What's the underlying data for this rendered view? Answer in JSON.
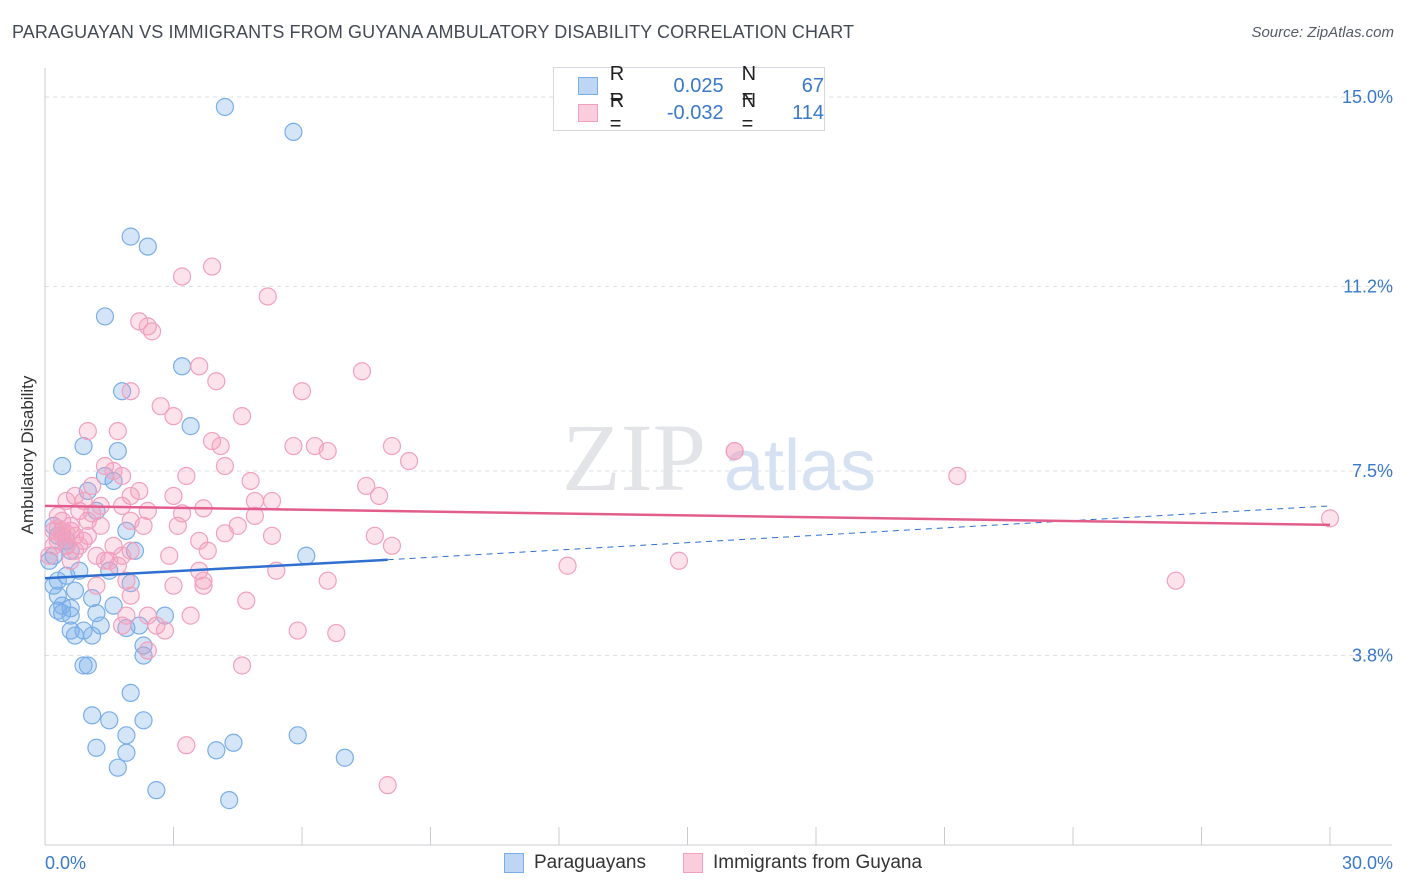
{
  "title": "PARAGUAYAN VS IMMIGRANTS FROM GUYANA AMBULATORY DISABILITY CORRELATION CHART",
  "source": "Source: ZipAtlas.com",
  "watermark": {
    "zip": "ZIP",
    "atlas": "atlas"
  },
  "legend": {
    "r_label": "R =",
    "n_label": "N =",
    "series": [
      {
        "r": "0.025",
        "n": "67"
      },
      {
        "r": "-0.032",
        "n": "114"
      }
    ]
  },
  "chart_data": {
    "type": "scatter",
    "title": "PARAGUAYAN VS IMMIGRANTS FROM GUYANA AMBULATORY DISABILITY CORRELATION CHART",
    "xlabel": "",
    "ylabel": "Ambulatory Disability",
    "xlim": [
      0,
      30
    ],
    "ylim": [
      0,
      15.5
    ],
    "x_tick_labels": [
      "0.0%",
      "30.0%"
    ],
    "y_ticks": [
      {
        "value": 3.8,
        "label": "3.8%"
      },
      {
        "value": 7.5,
        "label": "7.5%"
      },
      {
        "value": 11.2,
        "label": "11.2%"
      },
      {
        "value": 15.0,
        "label": "15.0%"
      }
    ],
    "legend_position": "bottom",
    "series": [
      {
        "name": "Paraguayans",
        "color": "#7aaee8",
        "line_color": "#2f6fcf",
        "trend": {
          "x0": 0,
          "y0": 5.35,
          "x1": 8.0,
          "y1": 5.72,
          "dash_to_x": 30,
          "dash_to_y": 6.8
        },
        "points": [
          [
            4.2,
            14.8
          ],
          [
            5.8,
            14.3
          ],
          [
            2.0,
            12.2
          ],
          [
            2.4,
            12.0
          ],
          [
            1.4,
            10.6
          ],
          [
            3.2,
            9.6
          ],
          [
            1.8,
            9.1
          ],
          [
            3.4,
            8.4
          ],
          [
            0.9,
            8.0
          ],
          [
            1.7,
            7.9
          ],
          [
            0.4,
            7.6
          ],
          [
            1.4,
            7.4
          ],
          [
            1.6,
            7.3
          ],
          [
            1.0,
            7.1
          ],
          [
            0.2,
            6.4
          ],
          [
            0.3,
            6.2
          ],
          [
            0.5,
            6.0
          ],
          [
            1.9,
            6.3
          ],
          [
            0.6,
            5.9
          ],
          [
            2.1,
            5.9
          ],
          [
            6.1,
            5.8
          ],
          [
            0.1,
            5.7
          ],
          [
            0.5,
            5.4
          ],
          [
            1.5,
            5.5
          ],
          [
            0.3,
            5.3
          ],
          [
            0.2,
            5.2
          ],
          [
            0.7,
            5.1
          ],
          [
            2.0,
            5.25
          ],
          [
            0.3,
            5.0
          ],
          [
            1.1,
            4.95
          ],
          [
            0.4,
            4.8
          ],
          [
            0.6,
            4.75
          ],
          [
            1.6,
            4.8
          ],
          [
            0.3,
            4.7
          ],
          [
            0.4,
            4.65
          ],
          [
            1.2,
            4.65
          ],
          [
            0.6,
            4.6
          ],
          [
            2.8,
            4.6
          ],
          [
            0.9,
            4.3
          ],
          [
            1.9,
            4.35
          ],
          [
            0.7,
            4.2
          ],
          [
            1.1,
            4.2
          ],
          [
            2.3,
            4.0
          ],
          [
            2.3,
            3.8
          ],
          [
            0.9,
            3.6
          ],
          [
            2.0,
            3.05
          ],
          [
            1.1,
            2.6
          ],
          [
            1.5,
            2.5
          ],
          [
            2.3,
            2.5
          ],
          [
            1.9,
            2.2
          ],
          [
            5.9,
            2.2
          ],
          [
            4.4,
            2.05
          ],
          [
            1.2,
            1.95
          ],
          [
            1.9,
            1.85
          ],
          [
            4.0,
            1.9
          ],
          [
            7.0,
            1.75
          ],
          [
            1.7,
            1.55
          ],
          [
            2.6,
            1.1
          ],
          [
            4.3,
            0.9
          ],
          [
            1.0,
            3.6
          ],
          [
            0.5,
            6.1
          ],
          [
            2.2,
            4.4
          ],
          [
            1.3,
            4.4
          ],
          [
            0.8,
            5.5
          ],
          [
            1.2,
            6.7
          ],
          [
            0.2,
            5.8
          ],
          [
            0.6,
            4.3
          ]
        ]
      },
      {
        "name": "Immigrants from Guyana",
        "color": "#f2a0bd",
        "line_color": "#e35d8c",
        "trend": {
          "x0": 0,
          "y0": 6.8,
          "x1": 30,
          "y1": 6.42
        },
        "points": [
          [
            3.9,
            11.6
          ],
          [
            3.2,
            11.4
          ],
          [
            5.2,
            11.0
          ],
          [
            2.2,
            10.5
          ],
          [
            2.5,
            10.3
          ],
          [
            2.4,
            10.4
          ],
          [
            7.4,
            9.5
          ],
          [
            3.6,
            9.6
          ],
          [
            4.0,
            9.3
          ],
          [
            2.0,
            9.1
          ],
          [
            6.0,
            9.1
          ],
          [
            2.7,
            8.8
          ],
          [
            3.0,
            8.6
          ],
          [
            4.6,
            8.6
          ],
          [
            1.7,
            8.3
          ],
          [
            1.0,
            8.3
          ],
          [
            3.9,
            8.1
          ],
          [
            4.1,
            8.0
          ],
          [
            5.8,
            8.0
          ],
          [
            6.3,
            8.0
          ],
          [
            6.6,
            7.9
          ],
          [
            8.1,
            8.0
          ],
          [
            8.5,
            7.7
          ],
          [
            4.2,
            7.6
          ],
          [
            1.8,
            7.4
          ],
          [
            1.4,
            7.6
          ],
          [
            1.6,
            7.5
          ],
          [
            2.2,
            7.1
          ],
          [
            3.3,
            7.4
          ],
          [
            4.8,
            7.3
          ],
          [
            7.5,
            7.2
          ],
          [
            7.8,
            7.0
          ],
          [
            5.3,
            6.9
          ],
          [
            4.9,
            6.9
          ],
          [
            2.0,
            7.0
          ],
          [
            3.0,
            7.0
          ],
          [
            1.1,
            7.2
          ],
          [
            0.7,
            7.0
          ],
          [
            0.9,
            6.9
          ],
          [
            1.3,
            6.8
          ],
          [
            0.5,
            6.9
          ],
          [
            1.8,
            6.8
          ],
          [
            2.4,
            6.7
          ],
          [
            3.7,
            6.75
          ],
          [
            4.9,
            6.6
          ],
          [
            0.8,
            6.7
          ],
          [
            1.0,
            6.5
          ],
          [
            0.3,
            6.6
          ],
          [
            0.4,
            6.5
          ],
          [
            1.3,
            6.4
          ],
          [
            2.3,
            6.4
          ],
          [
            3.1,
            6.4
          ],
          [
            4.5,
            6.4
          ],
          [
            0.2,
            6.3
          ],
          [
            0.6,
            6.3
          ],
          [
            0.4,
            6.2
          ],
          [
            0.7,
            6.2
          ],
          [
            1.0,
            6.2
          ],
          [
            5.3,
            6.2
          ],
          [
            7.7,
            6.2
          ],
          [
            8.1,
            6.0
          ],
          [
            3.6,
            6.1
          ],
          [
            0.3,
            6.1
          ],
          [
            0.5,
            6.0
          ],
          [
            0.8,
            6.0
          ],
          [
            1.6,
            6.0
          ],
          [
            2.0,
            5.9
          ],
          [
            1.2,
            5.8
          ],
          [
            0.6,
            5.7
          ],
          [
            1.5,
            5.7
          ],
          [
            1.7,
            5.6
          ],
          [
            2.9,
            5.8
          ],
          [
            5.4,
            5.5
          ],
          [
            3.6,
            5.5
          ],
          [
            3.7,
            5.3
          ],
          [
            1.2,
            5.2
          ],
          [
            1.9,
            5.3
          ],
          [
            3.0,
            5.2
          ],
          [
            3.7,
            5.2
          ],
          [
            6.6,
            5.3
          ],
          [
            12.2,
            5.6
          ],
          [
            14.8,
            5.7
          ],
          [
            26.4,
            5.3
          ],
          [
            30.0,
            6.55
          ],
          [
            2.0,
            5.0
          ],
          [
            4.7,
            4.9
          ],
          [
            2.4,
            4.6
          ],
          [
            2.6,
            4.4
          ],
          [
            1.8,
            4.4
          ],
          [
            1.9,
            4.6
          ],
          [
            3.4,
            4.6
          ],
          [
            2.8,
            4.3
          ],
          [
            5.9,
            4.3
          ],
          [
            6.8,
            4.25
          ],
          [
            2.4,
            3.9
          ],
          [
            4.6,
            3.6
          ],
          [
            3.3,
            2.0
          ],
          [
            8.0,
            1.2
          ],
          [
            16.1,
            7.9
          ],
          [
            16.1,
            7.9
          ],
          [
            21.3,
            7.4
          ],
          [
            0.1,
            5.8
          ],
          [
            0.2,
            6.0
          ],
          [
            0.9,
            6.1
          ],
          [
            1.1,
            6.65
          ],
          [
            1.4,
            5.7
          ],
          [
            2.0,
            6.5
          ],
          [
            0.6,
            6.4
          ],
          [
            1.8,
            5.8
          ],
          [
            3.2,
            6.65
          ],
          [
            0.4,
            6.3
          ],
          [
            0.7,
            5.9
          ],
          [
            0.3,
            6.35
          ],
          [
            4.2,
            6.25
          ],
          [
            3.8,
            5.9
          ],
          [
            0.5,
            6.25
          ]
        ]
      }
    ]
  },
  "bottom_legend": [
    "Paraguayans",
    "Immigrants from Guyana"
  ]
}
